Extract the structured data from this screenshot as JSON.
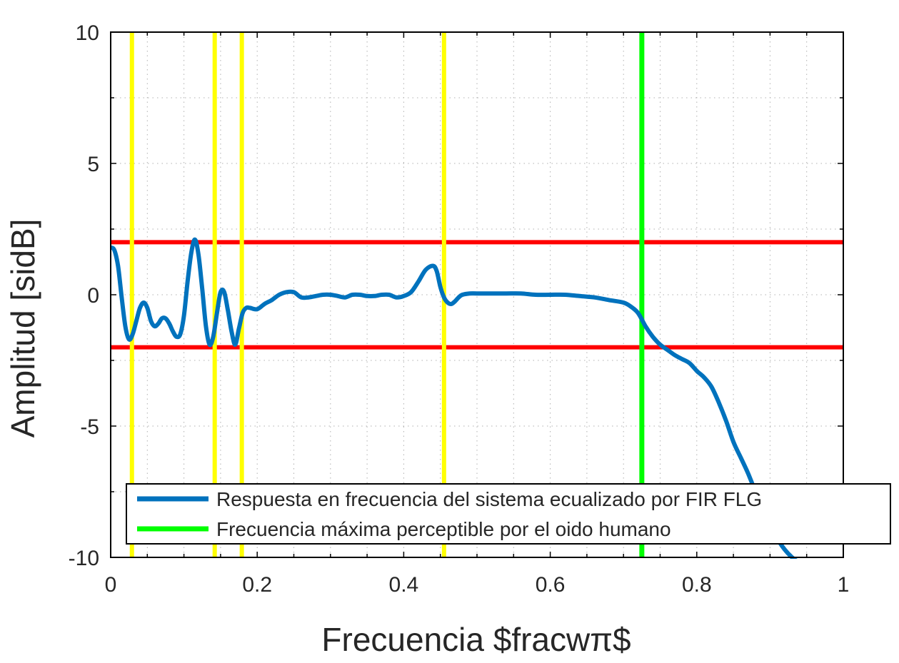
{
  "chart_data": {
    "type": "line",
    "title": "",
    "xlabel": "Frecuencia $fracwπ$",
    "ylabel": "Amplitud [sidB]",
    "xlim": [
      0,
      1
    ],
    "ylim": [
      -10,
      10
    ],
    "xticks": [
      0,
      0.2,
      0.4,
      0.6,
      0.8,
      1
    ],
    "xtick_labels": [
      "0",
      "0.2",
      "0.4",
      "0.6",
      "0.8",
      "1"
    ],
    "yticks": [
      10,
      5,
      0,
      -5,
      -10
    ],
    "ytick_labels": [
      "10",
      "5",
      "0",
      "-5",
      "-10"
    ],
    "grid": true,
    "grid_style": "dotted",
    "legend_placement": "bottom",
    "series": [
      {
        "name": "Respuesta en frecuencia del sistema ecualizado por FIR FLG",
        "color": "#0072BD",
        "x": [
          0,
          0.005,
          0.01,
          0.015,
          0.02,
          0.025,
          0.03,
          0.035,
          0.04,
          0.045,
          0.05,
          0.055,
          0.06,
          0.065,
          0.07,
          0.075,
          0.08,
          0.085,
          0.09,
          0.095,
          0.1,
          0.105,
          0.11,
          0.115,
          0.12,
          0.125,
          0.13,
          0.135,
          0.14,
          0.145,
          0.15,
          0.155,
          0.16,
          0.165,
          0.17,
          0.175,
          0.18,
          0.185,
          0.19,
          0.2,
          0.21,
          0.22,
          0.23,
          0.24,
          0.25,
          0.26,
          0.27,
          0.28,
          0.29,
          0.3,
          0.31,
          0.32,
          0.33,
          0.34,
          0.35,
          0.36,
          0.37,
          0.38,
          0.39,
          0.4,
          0.41,
          0.42,
          0.43,
          0.44,
          0.445,
          0.45,
          0.455,
          0.46,
          0.465,
          0.47,
          0.475,
          0.48,
          0.49,
          0.5,
          0.52,
          0.54,
          0.56,
          0.58,
          0.6,
          0.62,
          0.64,
          0.66,
          0.68,
          0.7,
          0.71,
          0.72,
          0.73,
          0.74,
          0.75,
          0.76,
          0.77,
          0.78,
          0.79,
          0.8,
          0.81,
          0.82,
          0.83,
          0.84,
          0.85,
          0.86,
          0.87,
          0.88,
          0.89,
          0.9,
          0.91,
          0.92,
          0.93,
          0.94,
          0.95
        ],
        "y": [
          1.8,
          1.7,
          1.1,
          -0.1,
          -1.2,
          -1.7,
          -1.5,
          -1.0,
          -0.5,
          -0.3,
          -0.5,
          -1.0,
          -1.2,
          -1.1,
          -0.9,
          -0.9,
          -1.1,
          -1.4,
          -1.6,
          -1.5,
          -0.8,
          0.5,
          1.6,
          2.1,
          1.5,
          0.2,
          -1.2,
          -1.9,
          -1.6,
          -0.7,
          0.1,
          0.1,
          -0.6,
          -1.4,
          -1.9,
          -1.3,
          -0.7,
          -0.5,
          -0.5,
          -0.55,
          -0.35,
          -0.2,
          0.0,
          0.1,
          0.1,
          -0.1,
          -0.1,
          -0.05,
          0.0,
          0.0,
          -0.05,
          -0.1,
          0.0,
          0.0,
          -0.05,
          -0.05,
          0.0,
          0.0,
          -0.1,
          -0.05,
          0.1,
          0.5,
          0.95,
          1.1,
          0.9,
          0.3,
          -0.1,
          -0.3,
          -0.35,
          -0.25,
          -0.1,
          0.0,
          0.05,
          0.05,
          0.05,
          0.05,
          0.05,
          0.0,
          0.0,
          0.0,
          -0.05,
          -0.1,
          -0.2,
          -0.3,
          -0.45,
          -0.7,
          -1.2,
          -1.6,
          -1.9,
          -2.1,
          -2.3,
          -2.45,
          -2.6,
          -2.9,
          -3.15,
          -3.5,
          -4.1,
          -4.8,
          -5.6,
          -6.2,
          -6.8,
          -7.5,
          -8.2,
          -8.8,
          -9.3,
          -9.7,
          -10.0,
          -10.2,
          -10.4
        ]
      },
      {
        "name": "Frecuencia máxima perceptible por el oido humano",
        "color": "#00FF00",
        "kind": "vline",
        "x": 0.725
      }
    ],
    "reference_lines": {
      "horizontal": {
        "color": "#FF0000",
        "y": [
          2,
          -2
        ]
      },
      "vertical_yellow": {
        "color": "#FFFF00",
        "x": [
          0.029,
          0.142,
          0.179,
          0.455
        ]
      }
    }
  }
}
